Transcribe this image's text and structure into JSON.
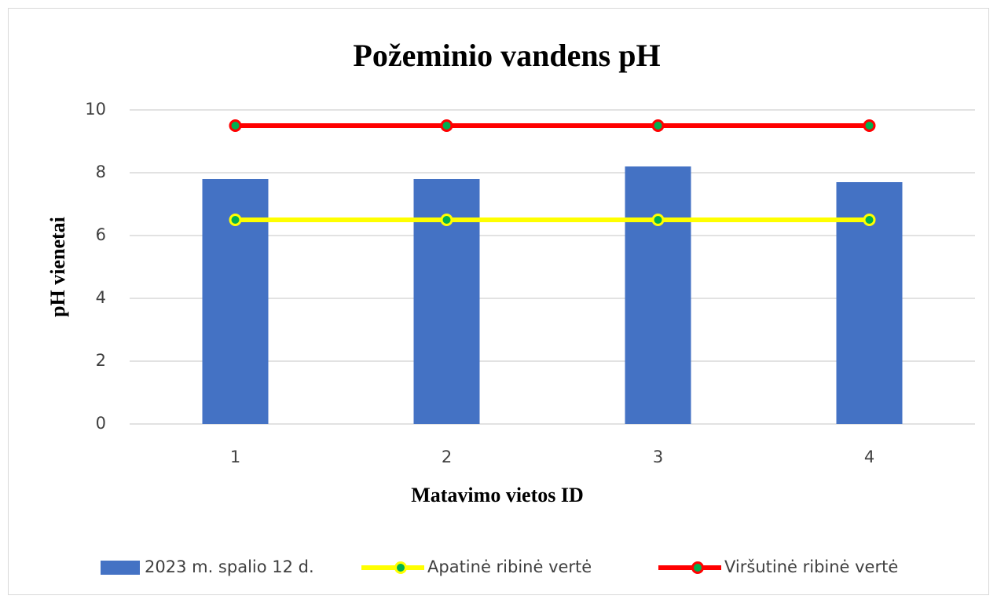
{
  "chart_data": {
    "type": "bar",
    "title": "Požeminio vandens pH",
    "x_label": "Matavimo vietos ID",
    "y_label": "pH vienetai",
    "categories": [
      "1",
      "2",
      "3",
      "4"
    ],
    "series": [
      {
        "name": "2023 m. spalio 12 d.",
        "type": "bar",
        "color": "#4472c4",
        "values": [
          7.8,
          7.8,
          8.2,
          7.7
        ]
      },
      {
        "name": "Apatinė ribinė vertė",
        "type": "line",
        "color": "#ffff00",
        "marker_color": "#00b050",
        "values": [
          6.5,
          6.5,
          6.5,
          6.5
        ]
      },
      {
        "name": "Viršutinė ribinė vertė",
        "type": "line",
        "color": "#ff0000",
        "marker_color": "#00b050",
        "values": [
          9.5,
          9.5,
          9.5,
          9.5
        ]
      }
    ],
    "ylim": [
      0,
      10
    ],
    "yticks": [
      0,
      2,
      4,
      6,
      8,
      10
    ],
    "grid": true,
    "legend": "bottom"
  }
}
